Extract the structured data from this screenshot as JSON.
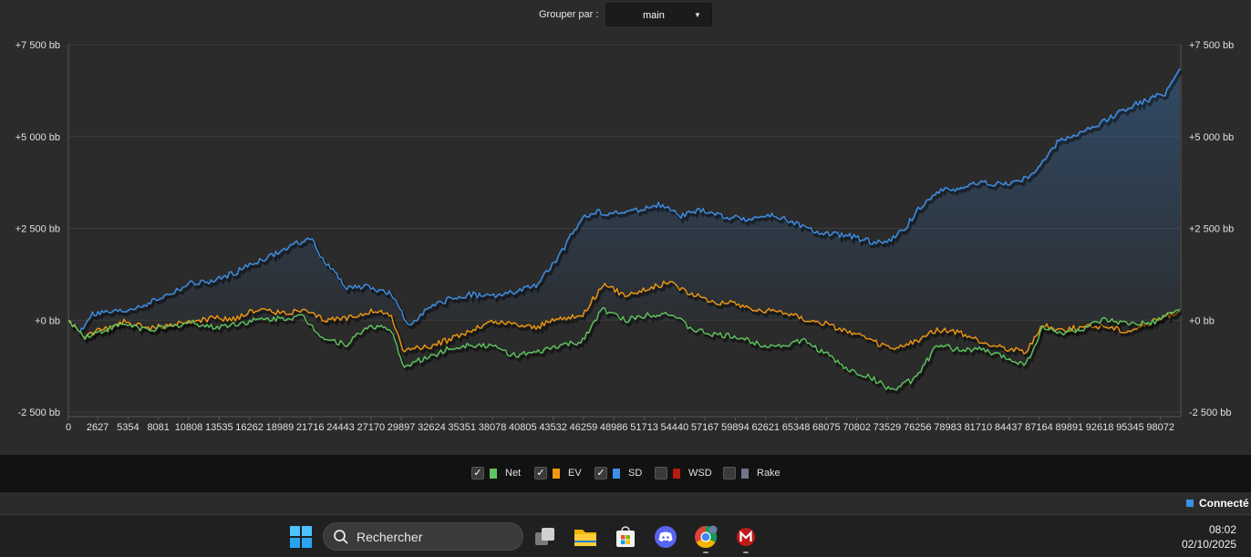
{
  "toolbar": {
    "group_label": "Grouper par :",
    "group_value": "main"
  },
  "chart_data": {
    "type": "line",
    "xlabel": "",
    "ylabel": "",
    "x_ticks": [
      0,
      2627,
      5354,
      8081,
      10808,
      13535,
      16262,
      18989,
      21716,
      24443,
      27170,
      29897,
      32624,
      35351,
      38078,
      40805,
      43532,
      46259,
      48986,
      51713,
      54440,
      57167,
      59894,
      62621,
      65348,
      68075,
      70802,
      73529,
      76256,
      78983,
      81710,
      84437,
      87164,
      89891,
      92618,
      95345,
      98072
    ],
    "xlim": [
      0,
      99900
    ],
    "y_ticks": [
      {
        "value": 7500,
        "label": "+7 500 bb"
      },
      {
        "value": 5000,
        "label": "+5 000 bb"
      },
      {
        "value": 2500,
        "label": "+2 500 bb"
      },
      {
        "value": 0,
        "label": "+0 bb"
      },
      {
        "value": -2500,
        "label": "-2 500 bb"
      }
    ],
    "ylim": [
      -2500,
      7500
    ],
    "grid": true,
    "series": [
      {
        "name": "SD",
        "color": "#3d8fe8",
        "area": true,
        "x": [
          0,
          1000,
          2000,
          3000,
          5000,
          7000,
          9000,
          11000,
          13000,
          15000,
          17000,
          19000,
          20500,
          21700,
          23000,
          25000,
          27000,
          29000,
          30500,
          32000,
          34000,
          36000,
          38000,
          40000,
          42000,
          44000,
          46000,
          47500,
          49000,
          51000,
          53000,
          55000,
          57000,
          59000,
          61000,
          63000,
          65000,
          66500,
          68000,
          70000,
          72000,
          73500,
          75000,
          76500,
          78000,
          80000,
          82000,
          84000,
          86000,
          87500,
          89000,
          91000,
          92500,
          94000,
          95500,
          97000,
          98500,
          99800
        ],
        "y": [
          0,
          -350,
          150,
          200,
          250,
          450,
          700,
          1000,
          1050,
          1300,
          1600,
          1850,
          2100,
          2250,
          1600,
          900,
          900,
          700,
          -150,
          250,
          550,
          700,
          650,
          750,
          950,
          1700,
          2750,
          2950,
          2900,
          3000,
          3150,
          2850,
          3000,
          2800,
          2750,
          2850,
          2700,
          2450,
          2350,
          2300,
          2150,
          2100,
          2450,
          3100,
          3500,
          3600,
          3750,
          3700,
          3850,
          4300,
          4900,
          5100,
          5300,
          5600,
          5850,
          6000,
          6200,
          6850
        ]
      },
      {
        "name": "EV",
        "color": "#f0980f",
        "x": [
          0,
          1500,
          3000,
          5000,
          7000,
          9000,
          11000,
          13000,
          15000,
          17000,
          19000,
          21000,
          23000,
          25000,
          27000,
          29000,
          30000,
          32000,
          34000,
          36000,
          38000,
          40000,
          42000,
          44000,
          46000,
          48000,
          50000,
          52000,
          54000,
          56000,
          58000,
          60000,
          62000,
          64000,
          66000,
          68000,
          70000,
          72000,
          74000,
          76000,
          78000,
          80000,
          82000,
          84000,
          86000,
          87500,
          89000,
          91000,
          93000,
          95000,
          97000,
          98500,
          99800
        ],
        "y": [
          0,
          -450,
          -250,
          -50,
          -200,
          -150,
          -50,
          50,
          50,
          300,
          200,
          250,
          0,
          50,
          250,
          150,
          -800,
          -750,
          -550,
          -300,
          -50,
          -100,
          -200,
          50,
          100,
          950,
          700,
          850,
          1050,
          700,
          500,
          450,
          250,
          250,
          50,
          -100,
          -300,
          -550,
          -800,
          -600,
          -250,
          -350,
          -600,
          -750,
          -850,
          -150,
          -250,
          -200,
          -150,
          -300,
          -100,
          100,
          250
        ]
      },
      {
        "name": "Net",
        "color": "#5fc55f",
        "x": [
          0,
          1500,
          3000,
          5000,
          7000,
          9000,
          11000,
          13000,
          15000,
          17000,
          19000,
          21000,
          23000,
          25000,
          27000,
          29000,
          30000,
          32000,
          34000,
          36000,
          38000,
          40000,
          42000,
          44000,
          46000,
          48000,
          50000,
          52000,
          54000,
          56000,
          58000,
          60000,
          62000,
          64000,
          66000,
          68000,
          70000,
          72000,
          74000,
          76000,
          78000,
          80000,
          82000,
          84000,
          86000,
          87500,
          89000,
          91000,
          93000,
          95000,
          97000,
          98500,
          99800
        ],
        "y": [
          0,
          -450,
          -300,
          -100,
          -250,
          -200,
          -50,
          -200,
          -100,
          0,
          50,
          100,
          -500,
          -650,
          -150,
          -250,
          -1250,
          -1050,
          -800,
          -650,
          -700,
          -950,
          -900,
          -700,
          -600,
          300,
          0,
          150,
          200,
          -250,
          -400,
          -450,
          -650,
          -700,
          -550,
          -900,
          -1350,
          -1550,
          -1900,
          -1600,
          -700,
          -800,
          -800,
          -1000,
          -1200,
          -200,
          -350,
          -250,
          0,
          -100,
          -100,
          100,
          300
        ]
      }
    ]
  },
  "legend": [
    {
      "label": "Net",
      "color": "#5fc55f",
      "checked": true,
      "check_glyph": "✓"
    },
    {
      "label": "EV",
      "color": "#f0980f",
      "checked": true,
      "check_glyph": "✓"
    },
    {
      "label": "SD",
      "color": "#3d8fe8",
      "checked": true,
      "check_glyph": "✓"
    },
    {
      "label": "WSD",
      "color": "#b51c10",
      "checked": false,
      "check_glyph": ""
    },
    {
      "label": "Rake",
      "color": "#707588",
      "checked": false,
      "check_glyph": ""
    }
  ],
  "status": {
    "text": "Connecté",
    "color": "#3d8fe8"
  },
  "taskbar": {
    "search_placeholder": "Rechercher",
    "time": "08:02",
    "date": "02/10/2025",
    "icons": [
      "windows-start-icon",
      "task-view-icon",
      "file-explorer-icon",
      "microsoft-store-icon",
      "discord-icon",
      "chrome-icon",
      "mcafee-icon"
    ]
  }
}
